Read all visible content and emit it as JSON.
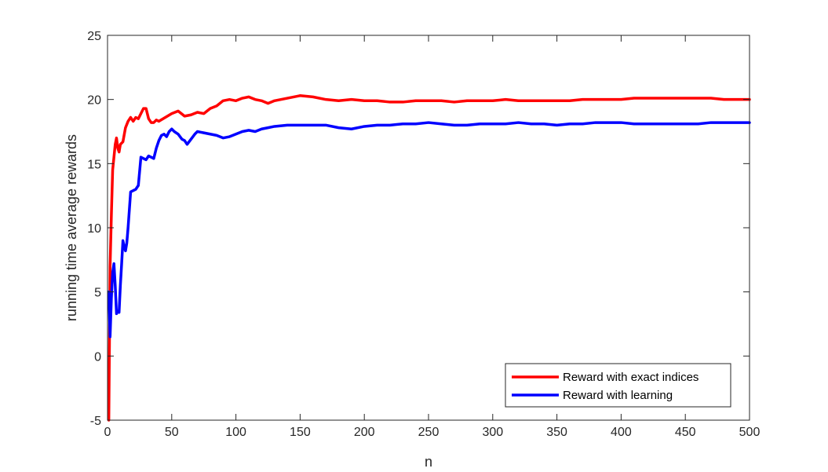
{
  "chart_data": {
    "type": "line",
    "title": "",
    "xlabel": "n",
    "ylabel": "running time average rewards",
    "xlim": [
      0,
      500
    ],
    "ylim": [
      -5,
      25
    ],
    "xticks": [
      0,
      50,
      100,
      150,
      200,
      250,
      300,
      350,
      400,
      450,
      500
    ],
    "yticks": [
      -5,
      0,
      5,
      10,
      15,
      20,
      25
    ],
    "grid": false,
    "legend_position": "bottom-right",
    "series": [
      {
        "name": "Reward with exact indices",
        "color": "#ff0000",
        "x": [
          1,
          2,
          3,
          4,
          5,
          6,
          7,
          8,
          9,
          10,
          12,
          14,
          16,
          18,
          20,
          22,
          24,
          26,
          28,
          30,
          32,
          34,
          36,
          38,
          40,
          45,
          50,
          55,
          60,
          65,
          70,
          75,
          80,
          85,
          90,
          95,
          100,
          105,
          110,
          115,
          120,
          125,
          130,
          135,
          140,
          150,
          160,
          170,
          180,
          190,
          200,
          210,
          220,
          230,
          240,
          250,
          260,
          270,
          280,
          290,
          300,
          310,
          320,
          330,
          340,
          350,
          360,
          370,
          380,
          390,
          400,
          410,
          420,
          430,
          440,
          450,
          460,
          470,
          480,
          490,
          500
        ],
        "y": [
          -5,
          7,
          11,
          14.5,
          15.5,
          16.5,
          17,
          16.2,
          15.9,
          16.5,
          16.7,
          17.8,
          18.3,
          18.6,
          18.3,
          18.6,
          18.5,
          18.9,
          19.3,
          19.3,
          18.5,
          18.2,
          18.2,
          18.4,
          18.3,
          18.6,
          18.9,
          19.1,
          18.7,
          18.8,
          19.0,
          18.9,
          19.3,
          19.5,
          19.9,
          20.0,
          19.9,
          20.1,
          20.2,
          20.0,
          19.9,
          19.7,
          19.9,
          20.0,
          20.1,
          20.3,
          20.2,
          20.0,
          19.9,
          20.0,
          19.9,
          19.9,
          19.8,
          19.8,
          19.9,
          19.9,
          19.9,
          19.8,
          19.9,
          19.9,
          19.9,
          20.0,
          19.9,
          19.9,
          19.9,
          19.9,
          19.9,
          20.0,
          20.0,
          20.0,
          20.0,
          20.1,
          20.1,
          20.1,
          20.1,
          20.1,
          20.1,
          20.1,
          20.0,
          20.0,
          20.0
        ]
      },
      {
        "name": "Reward with learning",
        "color": "#0000ff",
        "x": [
          1,
          2,
          3,
          4,
          5,
          6,
          7,
          8,
          9,
          10,
          11,
          12,
          13,
          14,
          15,
          16,
          18,
          20,
          22,
          24,
          26,
          28,
          30,
          32,
          34,
          36,
          38,
          40,
          42,
          44,
          46,
          48,
          50,
          52,
          55,
          58,
          60,
          62,
          65,
          68,
          70,
          75,
          80,
          85,
          90,
          95,
          100,
          105,
          110,
          115,
          120,
          125,
          130,
          140,
          150,
          160,
          170,
          180,
          190,
          200,
          210,
          220,
          230,
          240,
          250,
          260,
          270,
          280,
          290,
          300,
          310,
          320,
          330,
          340,
          350,
          360,
          370,
          380,
          390,
          400,
          410,
          420,
          430,
          440,
          450,
          460,
          470,
          480,
          490,
          500
        ],
        "y": [
          5,
          1.5,
          4.5,
          6.5,
          7.2,
          5.5,
          3.3,
          3.5,
          3.4,
          5.5,
          7.2,
          9.0,
          8.5,
          8.2,
          8.8,
          10.0,
          12.8,
          12.9,
          13.0,
          13.3,
          15.5,
          15.4,
          15.3,
          15.6,
          15.5,
          15.4,
          16.2,
          16.8,
          17.2,
          17.3,
          17.1,
          17.5,
          17.7,
          17.5,
          17.3,
          16.9,
          16.8,
          16.5,
          16.9,
          17.3,
          17.5,
          17.4,
          17.3,
          17.2,
          17.0,
          17.1,
          17.3,
          17.5,
          17.6,
          17.5,
          17.7,
          17.8,
          17.9,
          18.0,
          18.0,
          18.0,
          18.0,
          17.8,
          17.7,
          17.9,
          18.0,
          18.0,
          18.1,
          18.1,
          18.2,
          18.1,
          18.0,
          18.0,
          18.1,
          18.1,
          18.1,
          18.2,
          18.1,
          18.1,
          18.0,
          18.1,
          18.1,
          18.2,
          18.2,
          18.2,
          18.1,
          18.1,
          18.1,
          18.1,
          18.1,
          18.1,
          18.2,
          18.2,
          18.2,
          18.2
        ]
      }
    ]
  }
}
